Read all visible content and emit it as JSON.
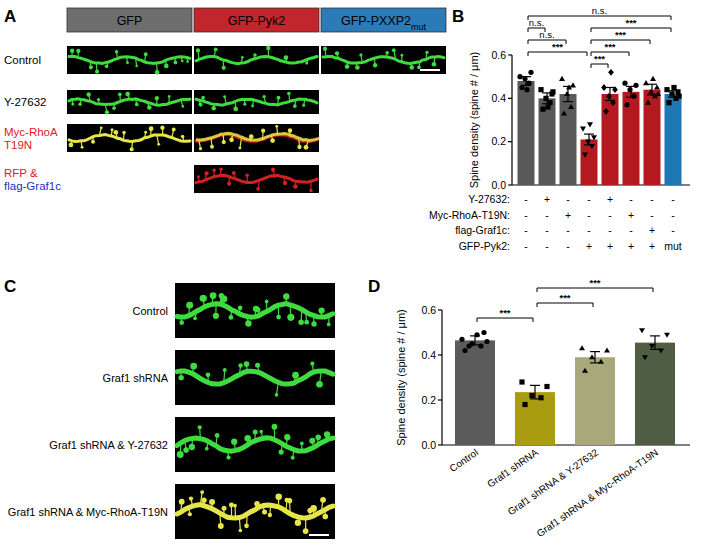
{
  "panel_labels": [
    "A",
    "B",
    "C",
    "D"
  ],
  "panel_a": {
    "columns": [
      {
        "text": "GFP",
        "color": "#6d6d6d"
      },
      {
        "text": "GFP-Pyk2",
        "color": "#c0262c"
      },
      {
        "text": "GFP-PXXP2",
        "sub": "mut",
        "color": "#2b7bb9"
      }
    ],
    "rows": [
      {
        "lines": [
          {
            "text": "Control",
            "color": "#000000"
          }
        ],
        "cells": [
          0,
          1,
          2
        ]
      },
      {
        "lines": [
          {
            "text": "Y-27632",
            "color": "#000000"
          }
        ],
        "cells": [
          0,
          1
        ]
      },
      {
        "lines": [
          {
            "text": "Myc-RhoA",
            "color": "#e02020"
          },
          {
            "text": "T19N",
            "color": "#e02020"
          }
        ],
        "cells": [
          0,
          1
        ]
      },
      {
        "lines": [
          {
            "text": "RFP &",
            "color": "#e02020"
          },
          {
            "text": "flag-Graf1c",
            "color": "#2030c0"
          }
        ],
        "cells": [
          1
        ]
      }
    ]
  },
  "panel_c": {
    "rows": [
      "Control",
      "Graf1 shRNA",
      "Graf1 shRNA & Y-27632",
      "Graf1 shRNA & Myc-RhoA-T19N"
    ]
  },
  "chart_data": [
    {
      "type": "bar",
      "y_label": "Spine density (spine # / μm)",
      "values": [
        0.48,
        0.4,
        0.42,
        0.21,
        0.42,
        0.43,
        0.44,
        0.42
      ],
      "errors": [
        0.02,
        0.025,
        0.035,
        0.025,
        0.03,
        0.025,
        0.025,
        0.015
      ],
      "colors": [
        "#595959",
        "#595959",
        "#595959",
        "#b3191f",
        "#b3191f",
        "#b3191f",
        "#b3191f",
        "#1f77b4"
      ],
      "points": [
        [
          0.45,
          0.47,
          0.49,
          0.52,
          0.5,
          0.44
        ],
        [
          0.35,
          0.38,
          0.4,
          0.42,
          0.44,
          0.36,
          0.43
        ],
        [
          0.33,
          0.36,
          0.42,
          0.46,
          0.49,
          0.45
        ],
        [
          0.14,
          0.18,
          0.2,
          0.22,
          0.26,
          0.28
        ],
        [
          0.34,
          0.38,
          0.41,
          0.44,
          0.45,
          0.52
        ],
        [
          0.37,
          0.41,
          0.44,
          0.46,
          0.47
        ],
        [
          0.38,
          0.41,
          0.43,
          0.45,
          0.47,
          0.49,
          0.42
        ],
        [
          0.38,
          0.4,
          0.42,
          0.43,
          0.44,
          0.45,
          0.41
        ]
      ],
      "ylim": [
        0,
        0.6
      ],
      "yticks": [
        {
          "value": 0,
          "label": "0.0"
        },
        0.2,
        0.4,
        0.6
      ],
      "condition_table": {
        "rows": [
          {
            "label": "Y-27632:",
            "cells": [
              "-",
              "+",
              "-",
              "-",
              "+",
              "-",
              "-",
              "-"
            ]
          },
          {
            "label": "Myc-RhoA-T19N:",
            "cells": [
              "-",
              "-",
              "+",
              "-",
              "-",
              "+",
              "-",
              "-"
            ]
          },
          {
            "label": "flag-Graf1c:",
            "cells": [
              "-",
              "-",
              "-",
              "-",
              "-",
              "-",
              "+",
              "-"
            ]
          },
          {
            "label": "GFP-Pyk2:",
            "cells": [
              "-",
              "-",
              "-",
              "+",
              "+",
              "+",
              "+",
              "mut"
            ]
          }
        ]
      },
      "comparisons": [
        {
          "from": 0,
          "to": 7,
          "label": "n.s."
        },
        {
          "from": 0,
          "to": 1,
          "label": "n.s."
        },
        {
          "from": 0,
          "to": 2,
          "label": "n.s."
        },
        {
          "from": 0,
          "to": 3,
          "label": "***"
        },
        {
          "from": 3,
          "to": 7,
          "label": "***"
        },
        {
          "from": 3,
          "to": 6,
          "label": "***"
        },
        {
          "from": 3,
          "to": 5,
          "label": "***"
        },
        {
          "from": 3,
          "to": 4,
          "label": "***"
        }
      ]
    },
    {
      "type": "bar",
      "y_label": "Spine density (spine # / μm)",
      "categories": [
        "Control",
        "Graf1 shRNA",
        "Graf1 shRNA & Y-27632",
        "Graf1 shRNA & Myc-RhoA-T19N"
      ],
      "values": [
        0.465,
        0.235,
        0.39,
        0.455
      ],
      "errors": [
        0.02,
        0.03,
        0.025,
        0.03
      ],
      "colors": [
        "#5b5b5b",
        "#a99c10",
        "#a8a97a",
        "#4e5d44"
      ],
      "points": [
        [
          0.42,
          0.44,
          0.45,
          0.46,
          0.47,
          0.49,
          0.5,
          0.44
        ],
        [
          0.18,
          0.21,
          0.22,
          0.26,
          0.28
        ],
        [
          0.33,
          0.37,
          0.39,
          0.42,
          0.43
        ],
        [
          0.39,
          0.42,
          0.44,
          0.49,
          0.51
        ]
      ],
      "ylim": [
        0,
        0.6
      ],
      "yticks": [
        {
          "value": 0,
          "label": "0.0"
        },
        0.2,
        0.4,
        0.6
      ],
      "comparisons": [
        {
          "from": 0,
          "to": 1,
          "label": "***"
        },
        {
          "from": 1,
          "to": 2,
          "label": "***"
        },
        {
          "from": 1,
          "to": 3,
          "label": "***"
        }
      ]
    }
  ]
}
